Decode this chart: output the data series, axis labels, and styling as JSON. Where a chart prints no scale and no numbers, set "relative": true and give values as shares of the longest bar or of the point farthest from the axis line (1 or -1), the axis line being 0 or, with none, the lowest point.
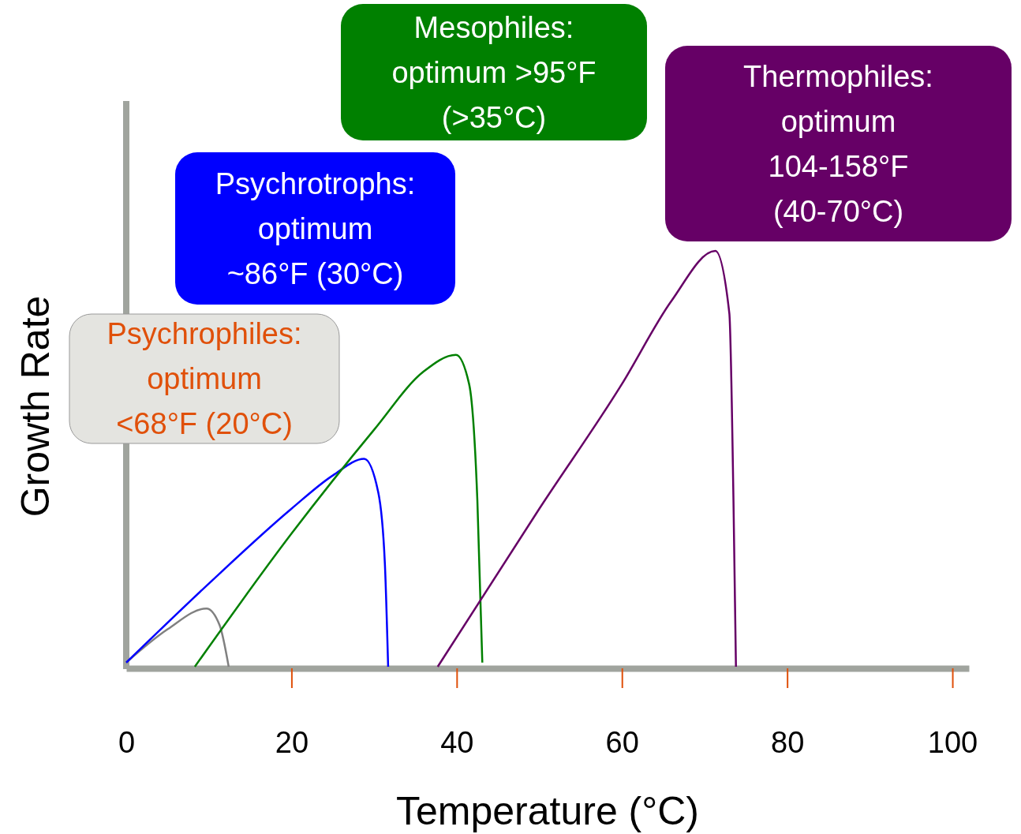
{
  "chart_data": {
    "type": "line",
    "relative": true,
    "xlabel": "Temperature (°C)",
    "ylabel": "Growth Rate",
    "xlim": [
      0,
      102
    ],
    "xticks": [
      0,
      20,
      40,
      60,
      80,
      100
    ],
    "annotations": [
      "Psychrophiles:\noptimum\n<68°F (20°C)",
      "Psychrotrophs:\noptimum\n~86°F (30°C)",
      "Mesophiles:\noptimum >95°F\n(>35°C)",
      "Thermophiles:\noptimum\n104-158°F\n(40-70°C)"
    ],
    "series": [
      {
        "color": "#808080",
        "x": [
          0,
          5,
          9.7,
          11.3,
          12.4
        ],
        "values": [
          0.01,
          0.09,
          0.14,
          0.1,
          0
        ]
      },
      {
        "color": "#0000ff",
        "x": [
          0,
          10,
          20,
          25,
          28.8,
          30.5,
          31.3,
          31.7
        ],
        "values": [
          0.01,
          0.2,
          0.38,
          0.46,
          0.5,
          0.42,
          0.25,
          0
        ]
      },
      {
        "color": "#008000",
        "x": [
          8.3,
          20,
          30,
          36,
          39.9,
          41.5,
          42.5,
          43.1
        ],
        "values": [
          0,
          0.32,
          0.57,
          0.71,
          0.75,
          0.68,
          0.4,
          0.01
        ]
      },
      {
        "color": "#660066",
        "x": [
          37.7,
          50,
          60,
          66,
          71.3,
          73,
          73.5,
          73.8
        ],
        "values": [
          0,
          0.38,
          0.68,
          0.88,
          1,
          0.85,
          0.4,
          0
        ]
      }
    ]
  }
}
